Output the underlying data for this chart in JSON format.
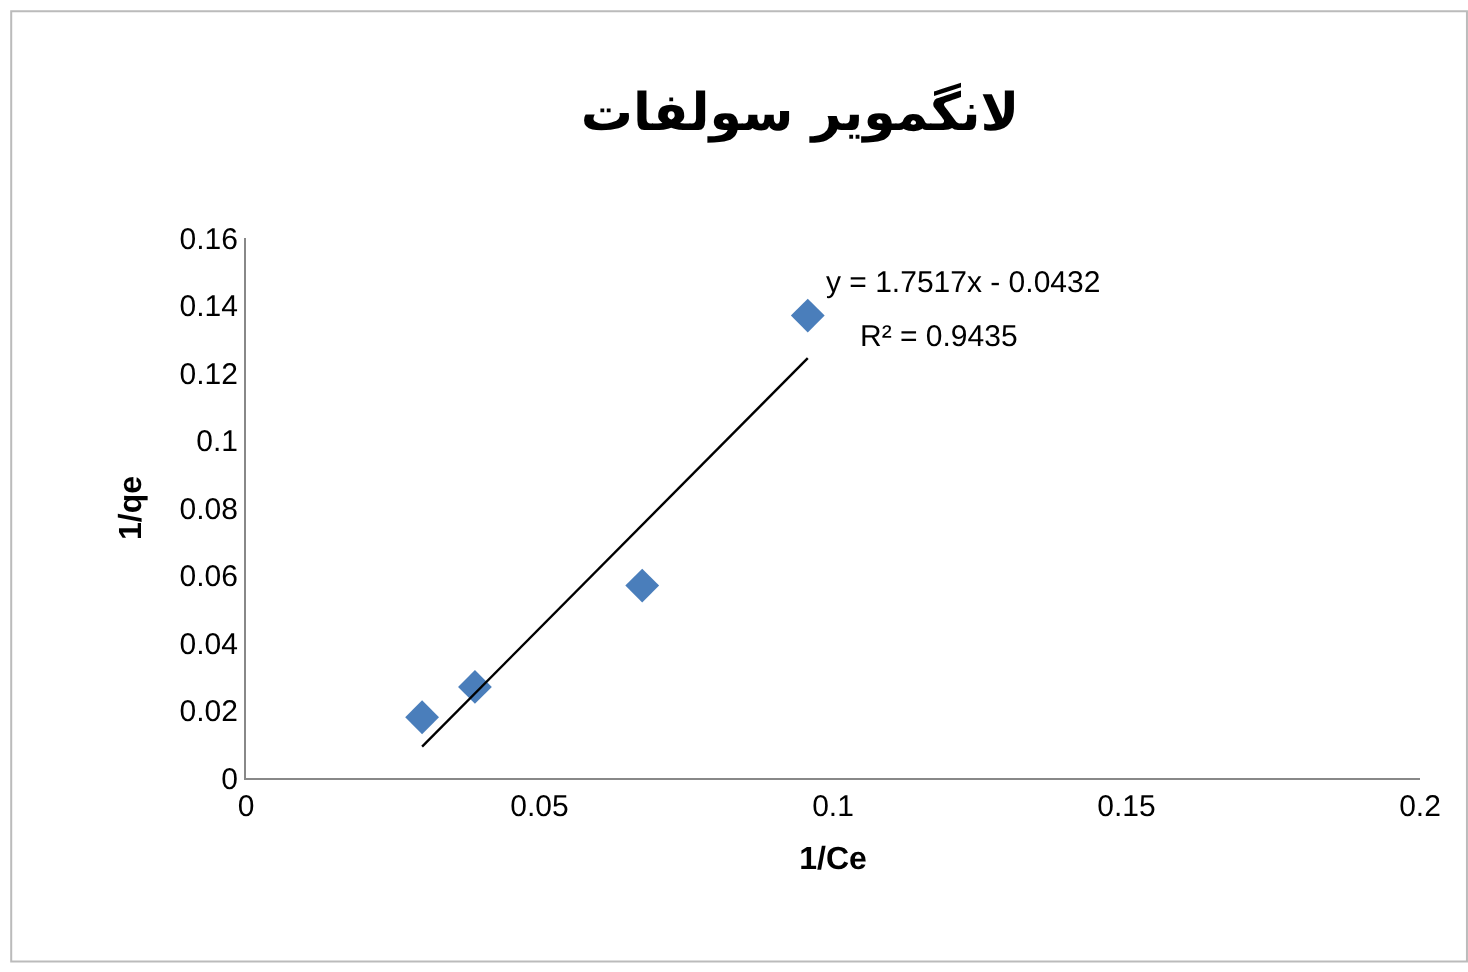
{
  "chart_data": {
    "type": "scatter",
    "title": "لانگموير سولفات",
    "xlabel": "1/Ce",
    "ylabel": "1/qe",
    "annotations": [
      "y = 1.7517x - 0.0432",
      "R² = 0.9435"
    ],
    "x": [
      0.03,
      0.039,
      0.0675,
      0.0957
    ],
    "series": [
      {
        "color": "#4a7ebb",
        "values": [
          0.018,
          0.027,
          0.057,
          0.137
        ],
        "marker": "diamond"
      },
      {
        "type": "line",
        "color": "#000000",
        "x": [
          0.03,
          0.0957
        ],
        "values": [
          0.0093,
          0.1244
        ],
        "line_style": "solid"
      }
    ],
    "xlim": [
      0,
      0.2
    ],
    "xticks": [
      0,
      0.05,
      0.1,
      0.15,
      0.2
    ],
    "ylim": [
      0,
      0.16
    ],
    "yticks": [
      0,
      0.02,
      0.04,
      0.06,
      0.08,
      0.1,
      0.12,
      0.14,
      0.16
    ],
    "grid": false
  }
}
